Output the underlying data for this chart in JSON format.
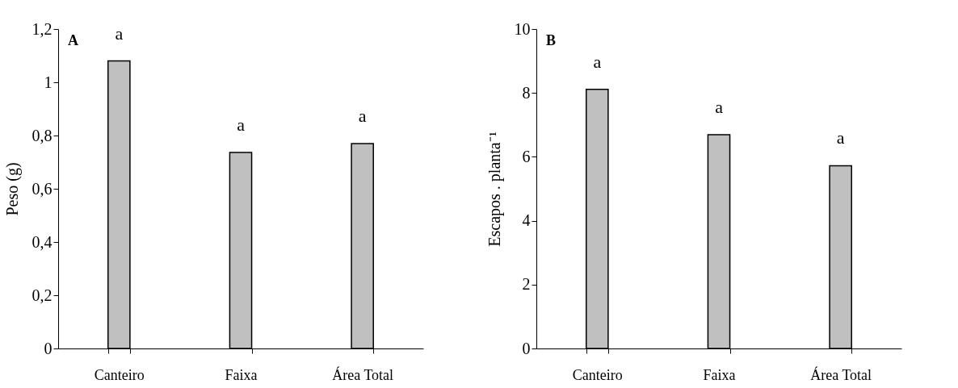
{
  "chart_data": [
    {
      "type": "bar",
      "title": "A",
      "categories": [
        "Canteiro",
        "Faixa",
        "Área Total"
      ],
      "values": [
        1.08,
        0.736,
        0.77
      ],
      "color": "#c0c0c0",
      "ylabel": "Peso  (g)",
      "ylim": [
        0,
        1.2
      ],
      "yticks": [
        0,
        {
          "value": 0.2,
          "label": "0,2"
        },
        {
          "value": 0.4,
          "label": "0,4"
        },
        {
          "value": 0.6,
          "label": "0,6"
        },
        {
          "value": 0.8,
          "label": "0,8"
        },
        1,
        {
          "value": 1.2,
          "label": "1,2"
        }
      ],
      "annotations": [
        "a",
        "a",
        "a"
      ]
    },
    {
      "type": "bar",
      "title": "B",
      "categories": [
        "Canteiro",
        "Faixa",
        "Área Total"
      ],
      "values": [
        8.11,
        6.69,
        5.72
      ],
      "color": "#c0c0c0",
      "ylabel": "Escapos . planta⁻¹",
      "ylim": [
        0,
        10
      ],
      "yticks": [
        0,
        2,
        4,
        6,
        8,
        10
      ],
      "annotations": [
        "a",
        "a",
        "a"
      ]
    }
  ]
}
